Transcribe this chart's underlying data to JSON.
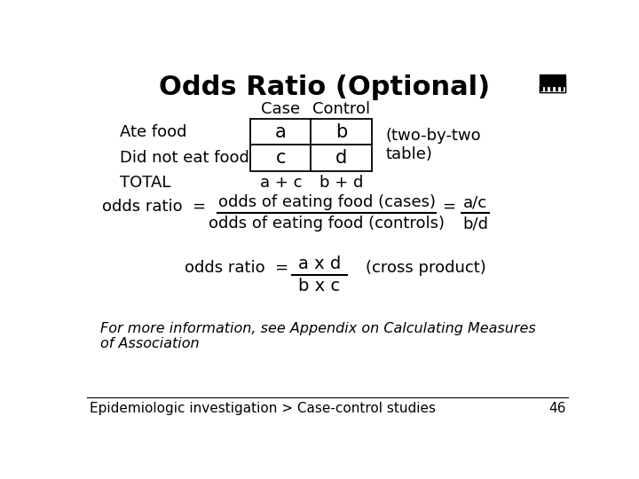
{
  "title": "Odds Ratio (Optional)",
  "title_fontsize": 22,
  "title_fontweight": "bold",
  "text_color": "#000000",
  "cell_values": [
    [
      "a",
      "b"
    ],
    [
      "c",
      "d"
    ]
  ],
  "two_by_two": "(two-by-two\ntable)",
  "odds_ratio_numerator": "odds of eating food (cases)",
  "odds_ratio_denominator": "odds of eating food (controls)",
  "odds_ratio_frac_num": "a/c",
  "odds_ratio_frac_den": "b/d",
  "odds_ratio2_num": "a x d",
  "odds_ratio2_den": "b x c",
  "cross_product": "(cross product)",
  "footnote": "For more information, see Appendix on Calculating Measures\nof Association",
  "footer": "Epidemiologic investigation > Case-control studies",
  "page_num": "46"
}
